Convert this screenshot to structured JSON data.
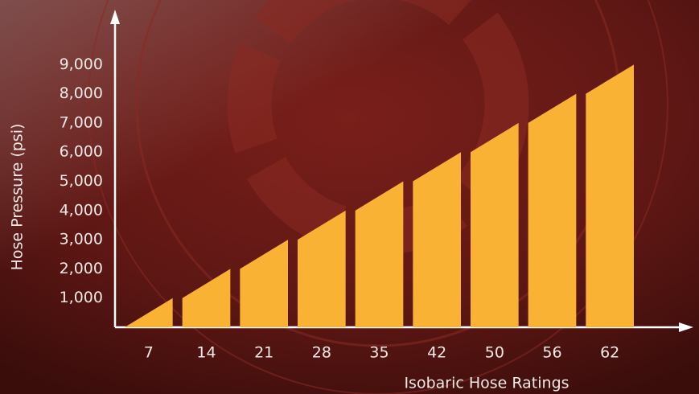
{
  "chart_data": {
    "type": "bar",
    "x_label": "Isobaric Hose Ratings",
    "y_label": "Hose Pressure (psi)",
    "categories": [
      "7",
      "14",
      "21",
      "28",
      "35",
      "42",
      "50",
      "56",
      "62"
    ],
    "values": [
      1000,
      2000,
      3000,
      4000,
      5000,
      6000,
      7000,
      8000,
      9000
    ],
    "color": "#f9b233",
    "ylim": [
      0,
      10800
    ],
    "yticks": [
      {
        "value": 1000,
        "label": "1,000"
      },
      {
        "value": 2000,
        "label": "2,000"
      },
      {
        "value": 3000,
        "label": "3,000"
      },
      {
        "value": 4000,
        "label": "4,000"
      },
      {
        "value": 5000,
        "label": "5,000"
      },
      {
        "value": 6000,
        "label": "6,000"
      },
      {
        "value": 7000,
        "label": "7,000"
      },
      {
        "value": 8000,
        "label": "8,000"
      },
      {
        "value": 9000,
        "label": "9,000"
      }
    ]
  }
}
